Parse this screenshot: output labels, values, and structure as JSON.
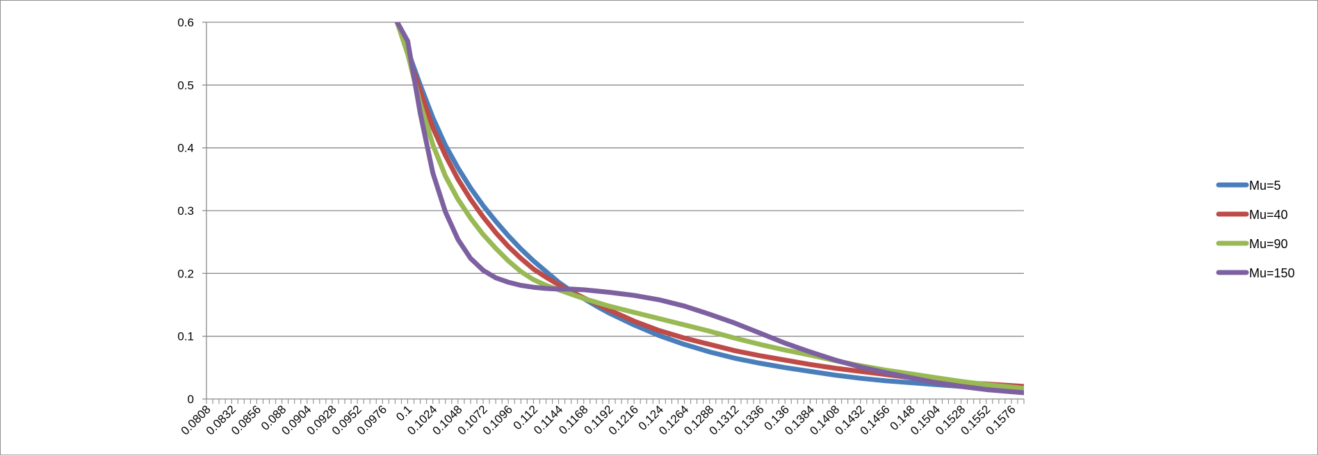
{
  "chart_data": {
    "type": "line",
    "title": "",
    "xlabel": "",
    "ylabel": "",
    "ylim": [
      0,
      0.6
    ],
    "yticks": [
      "0",
      "0.1",
      "0.2",
      "0.3",
      "0.4",
      "0.5",
      "0.6"
    ],
    "xlim": [
      0.0808,
      0.1588
    ],
    "xtick_labels": [
      "0.0808",
      "0.0832",
      "0.0856",
      "0.088",
      "0.0904",
      "0.0928",
      "0.0952",
      "0.0976",
      "0.1",
      "0.1024",
      "0.1048",
      "0.1072",
      "0.1096",
      "0.112",
      "0.1144",
      "0.1168",
      "0.1192",
      "0.1216",
      "0.124",
      "0.1264",
      "0.1288",
      "0.1312",
      "0.1336",
      "0.136",
      "0.1384",
      "0.1408",
      "0.1432",
      "0.1456",
      "0.148",
      "0.1504",
      "0.1528",
      "0.1552",
      "0.1576"
    ],
    "grid": true,
    "legend_position": "right",
    "series": [
      {
        "name": "Mu=5",
        "color": "#4a7ebb",
        "x": [
          0.099,
          0.1,
          0.1012,
          0.1024,
          0.1036,
          0.1048,
          0.106,
          0.1072,
          0.1084,
          0.1096,
          0.1108,
          0.112,
          0.1132,
          0.1144,
          0.1156,
          0.1168,
          0.118,
          0.1192,
          0.1216,
          0.124,
          0.1264,
          0.1288,
          0.1312,
          0.1336,
          0.136,
          0.1384,
          0.1408,
          0.1432,
          0.1456,
          0.148,
          0.1504,
          0.1528,
          0.1552,
          0.1588
        ],
        "y": [
          0.6,
          0.555,
          0.5,
          0.448,
          0.404,
          0.368,
          0.336,
          0.308,
          0.283,
          0.26,
          0.239,
          0.22,
          0.203,
          0.186,
          0.172,
          0.16,
          0.148,
          0.137,
          0.118,
          0.101,
          0.087,
          0.075,
          0.065,
          0.057,
          0.05,
          0.044,
          0.038,
          0.033,
          0.029,
          0.026,
          0.023,
          0.02,
          0.018,
          0.016
        ]
      },
      {
        "name": "Mu=40",
        "color": "#be4b48",
        "x": [
          0.099,
          0.1,
          0.1012,
          0.1024,
          0.1036,
          0.1048,
          0.106,
          0.1072,
          0.1084,
          0.1096,
          0.1108,
          0.112,
          0.1132,
          0.1144,
          0.1156,
          0.1168,
          0.118,
          0.1192,
          0.1216,
          0.124,
          0.1264,
          0.1288,
          0.1312,
          0.1336,
          0.136,
          0.1384,
          0.1408,
          0.1432,
          0.1456,
          0.148,
          0.1504,
          0.1528,
          0.1552,
          0.1588
        ],
        "y": [
          0.6,
          0.55,
          0.49,
          0.432,
          0.388,
          0.35,
          0.318,
          0.29,
          0.265,
          0.243,
          0.224,
          0.207,
          0.194,
          0.182,
          0.171,
          0.161,
          0.152,
          0.142,
          0.124,
          0.109,
          0.097,
          0.087,
          0.077,
          0.069,
          0.062,
          0.055,
          0.049,
          0.044,
          0.039,
          0.034,
          0.03,
          0.026,
          0.024,
          0.02
        ]
      },
      {
        "name": "Mu=90",
        "color": "#98b954",
        "x": [
          0.099,
          0.1,
          0.1012,
          0.1024,
          0.1036,
          0.1048,
          0.106,
          0.1072,
          0.1084,
          0.1096,
          0.1108,
          0.112,
          0.1132,
          0.1144,
          0.1156,
          0.1168,
          0.118,
          0.1192,
          0.1216,
          0.124,
          0.1264,
          0.1288,
          0.1312,
          0.1336,
          0.136,
          0.1384,
          0.1408,
          0.1432,
          0.1456,
          0.148,
          0.1504,
          0.1528,
          0.1552,
          0.1588
        ],
        "y": [
          0.6,
          0.55,
          0.47,
          0.405,
          0.355,
          0.318,
          0.288,
          0.262,
          0.24,
          0.22,
          0.203,
          0.19,
          0.181,
          0.174,
          0.167,
          0.16,
          0.154,
          0.148,
          0.138,
          0.128,
          0.118,
          0.108,
          0.097,
          0.087,
          0.078,
          0.07,
          0.061,
          0.053,
          0.046,
          0.04,
          0.034,
          0.028,
          0.023,
          0.017
        ]
      },
      {
        "name": "Mu=150",
        "color": "#7d60a0",
        "x": [
          0.099,
          0.1,
          0.1012,
          0.1024,
          0.1036,
          0.1048,
          0.106,
          0.1072,
          0.1084,
          0.1096,
          0.1108,
          0.112,
          0.1132,
          0.1144,
          0.1156,
          0.1168,
          0.118,
          0.1192,
          0.1216,
          0.124,
          0.1264,
          0.1288,
          0.1312,
          0.1336,
          0.136,
          0.1384,
          0.1408,
          0.1432,
          0.1456,
          0.148,
          0.1504,
          0.1528,
          0.1552,
          0.1588
        ],
        "y": [
          0.6,
          0.57,
          0.455,
          0.36,
          0.298,
          0.254,
          0.224,
          0.205,
          0.193,
          0.186,
          0.181,
          0.178,
          0.176,
          0.175,
          0.175,
          0.174,
          0.172,
          0.17,
          0.165,
          0.158,
          0.148,
          0.135,
          0.121,
          0.105,
          0.089,
          0.075,
          0.062,
          0.051,
          0.042,
          0.034,
          0.026,
          0.02,
          0.015,
          0.01
        ]
      }
    ]
  }
}
